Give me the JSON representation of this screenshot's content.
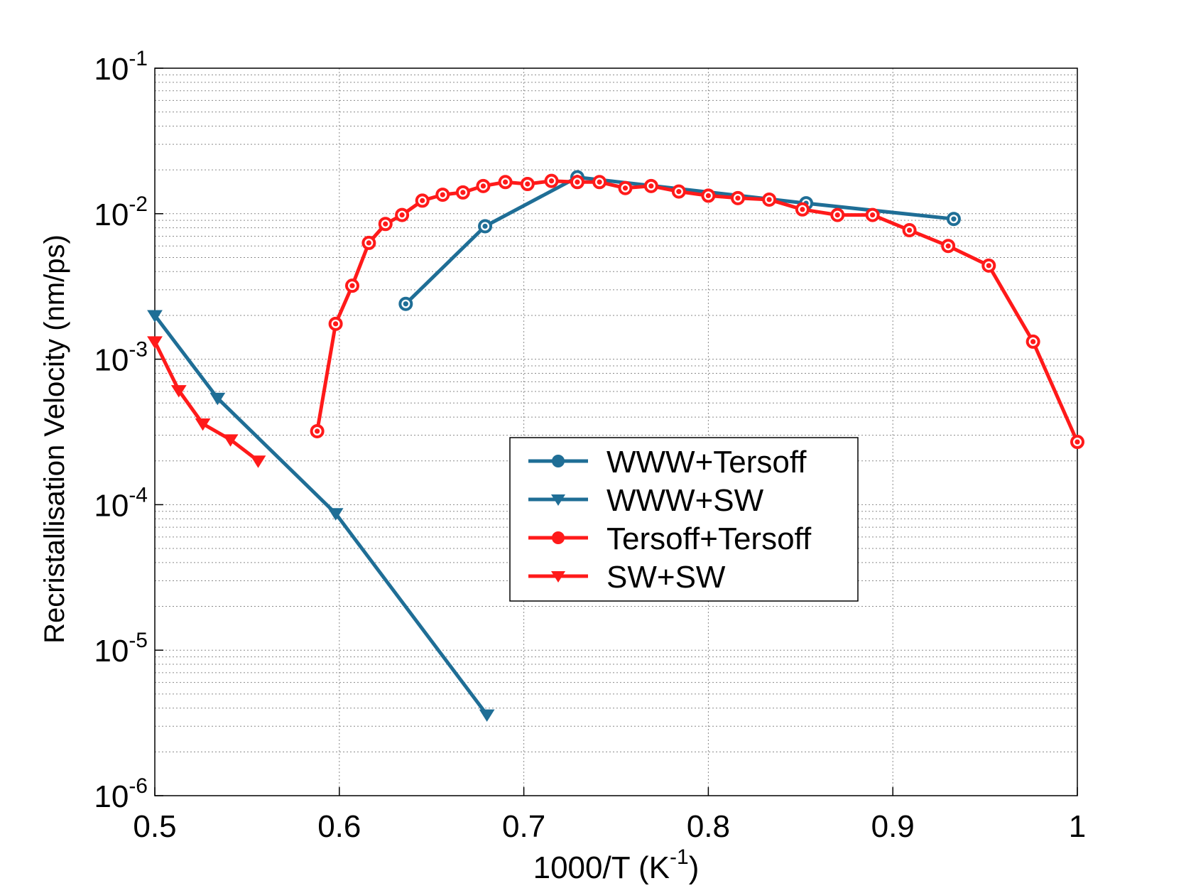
{
  "chart_data": {
    "type": "line",
    "title": "",
    "xlabel": {
      "base": "1000/T (K",
      "sup": "-1",
      "tail": ")"
    },
    "ylabel": "Recristallisation Velocity (nm/ps)",
    "x_scale": "linear",
    "y_scale": "log",
    "xlim": [
      0.5,
      1.0
    ],
    "ylim": [
      1e-06,
      0.1
    ],
    "x_ticks": [
      {
        "value": 0.5,
        "label": "0.5"
      },
      {
        "value": 0.6,
        "label": "0.6"
      },
      {
        "value": 0.7,
        "label": "0.7"
      },
      {
        "value": 0.8,
        "label": "0.8"
      },
      {
        "value": 0.9,
        "label": "0.9"
      },
      {
        "value": 1.0,
        "label": "1"
      }
    ],
    "y_ticks": [
      {
        "value": 1e-06,
        "base": "10",
        "sup": "-6"
      },
      {
        "value": 1e-05,
        "base": "10",
        "sup": "-5"
      },
      {
        "value": 0.0001,
        "base": "10",
        "sup": "-4"
      },
      {
        "value": 0.001,
        "base": "10",
        "sup": "-3"
      },
      {
        "value": 0.01,
        "base": "10",
        "sup": "-2"
      },
      {
        "value": 0.1,
        "base": "10",
        "sup": "-1"
      }
    ],
    "grid": true,
    "legend_position": "center",
    "series": [
      {
        "name": "WWW+Tersoff",
        "color": "#1f6e96",
        "marker": "circle",
        "x": [
          0.636,
          0.679,
          0.729,
          0.853,
          0.933
        ],
        "y": [
          0.0024,
          0.0082,
          0.0178,
          0.0118,
          0.0092
        ]
      },
      {
        "name": "WWW+SW",
        "color": "#1f6e96",
        "marker": "triangle-down",
        "x": [
          0.5,
          0.534,
          0.598,
          0.68
        ],
        "y": [
          0.002,
          0.00054,
          8.7e-05,
          3.6e-06
        ]
      },
      {
        "name": "Tersoff+Tersoff",
        "color": "#ff1a1a",
        "marker": "circle",
        "x": [
          0.588,
          0.598,
          0.607,
          0.616,
          0.625,
          0.634,
          0.645,
          0.656,
          0.667,
          0.678,
          0.69,
          0.702,
          0.715,
          0.729,
          0.741,
          0.755,
          0.769,
          0.784,
          0.8,
          0.816,
          0.833,
          0.851,
          0.87,
          0.889,
          0.909,
          0.93,
          0.952,
          0.976,
          1.0
        ],
        "y": [
          0.00032,
          0.00175,
          0.0032,
          0.0063,
          0.0085,
          0.0098,
          0.0123,
          0.0135,
          0.014,
          0.0155,
          0.0165,
          0.016,
          0.0168,
          0.0165,
          0.0165,
          0.015,
          0.0155,
          0.0142,
          0.0133,
          0.0128,
          0.0125,
          0.0107,
          0.0098,
          0.0098,
          0.0077,
          0.006,
          0.0044,
          0.00132,
          0.00027
        ]
      },
      {
        "name": "SW+SW",
        "color": "#ff1a1a",
        "marker": "triangle-down",
        "x": [
          0.5,
          0.513,
          0.526,
          0.541,
          0.556
        ],
        "y": [
          0.00132,
          0.00061,
          0.00036,
          0.00028,
          0.0002
        ]
      }
    ]
  }
}
